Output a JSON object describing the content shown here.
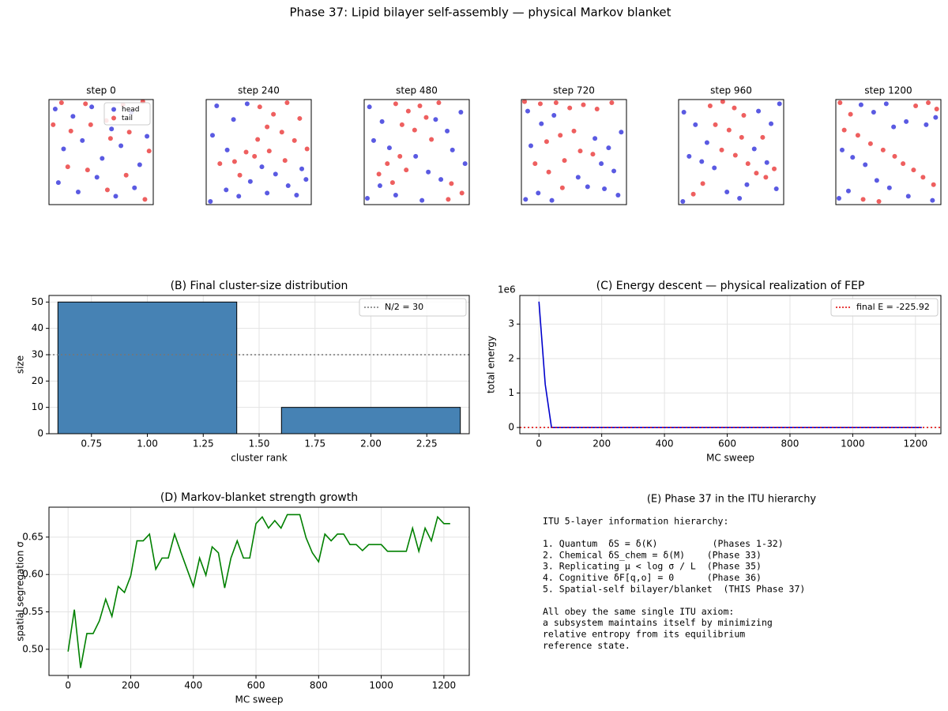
{
  "title": "Phase 37: Lipid bilayer self-assembly — physical Markov blanket",
  "chart_data": [
    {
      "type": "particles",
      "title": "step 0",
      "xlim": [
        0,
        10
      ],
      "ylim": [
        0,
        10
      ],
      "legend": "upper right",
      "series": [
        {
          "name": "head",
          "color": "#2323d8",
          "x": [
            0.6,
            2.3,
            4.1,
            6.0,
            7.9,
            9.4,
            1.4,
            3.2,
            5.1,
            6.9,
            8.7,
            0.9,
            2.8,
            4.6,
            6.4,
            8.2
          ],
          "values": [
            9.1,
            8.4,
            9.3,
            7.2,
            8.8,
            6.5,
            5.3,
            6.1,
            4.4,
            5.6,
            3.8,
            2.1,
            1.2,
            2.6,
            0.8,
            1.6
          ]
        },
        {
          "name": "tail",
          "color": "#e82a2a",
          "x": [
            1.2,
            3.5,
            5.5,
            7.1,
            9.0,
            0.4,
            2.1,
            4.0,
            5.9,
            7.7,
            9.6,
            1.8,
            3.7,
            5.6,
            7.4,
            9.2
          ],
          "values": [
            9.7,
            9.6,
            8.0,
            9.5,
            9.8,
            7.6,
            7.0,
            7.6,
            6.3,
            6.9,
            5.1,
            3.6,
            3.3,
            1.4,
            2.8,
            0.5
          ]
        }
      ]
    },
    {
      "type": "particles",
      "title": "step 240",
      "xlim": [
        0,
        10
      ],
      "ylim": [
        0,
        10
      ],
      "series": [
        {
          "name": "head",
          "color": "#2323d8",
          "x": [
            1.0,
            2.6,
            3.9,
            0.6,
            2.0,
            5.3,
            6.6,
            7.8,
            9.1,
            4.2,
            5.8,
            0.4,
            1.9,
            3.1,
            8.6,
            9.5
          ],
          "values": [
            9.4,
            8.1,
            9.6,
            6.6,
            5.2,
            3.6,
            2.9,
            1.8,
            3.4,
            2.2,
            1.1,
            0.3,
            1.4,
            0.8,
            0.9,
            2.4
          ]
        },
        {
          "name": "tail",
          "color": "#e82a2a",
          "x": [
            5.1,
            6.4,
            7.7,
            8.9,
            5.8,
            7.2,
            8.4,
            9.6,
            1.3,
            2.7,
            3.8,
            4.6,
            6.0,
            7.5,
            3.2,
            4.9
          ],
          "values": [
            9.3,
            8.6,
            9.7,
            8.2,
            7.4,
            6.9,
            6.1,
            5.3,
            3.9,
            4.1,
            5.0,
            4.6,
            5.1,
            4.2,
            2.8,
            6.2
          ]
        }
      ]
    },
    {
      "type": "particles",
      "title": "step 480",
      "xlim": [
        0,
        10
      ],
      "ylim": [
        0,
        10
      ],
      "series": [
        {
          "name": "head",
          "color": "#2323d8",
          "x": [
            0.5,
            1.7,
            0.9,
            2.4,
            6.8,
            7.9,
            9.2,
            8.4,
            9.6,
            4.9,
            6.1,
            7.3,
            0.3,
            1.5,
            3.0,
            5.5
          ],
          "values": [
            9.3,
            7.9,
            6.1,
            5.4,
            8.1,
            7.0,
            8.8,
            5.2,
            3.9,
            4.6,
            3.1,
            2.4,
            0.6,
            1.8,
            0.9,
            0.4
          ]
        },
        {
          "name": "tail",
          "color": "#e82a2a",
          "x": [
            3.0,
            4.2,
            5.3,
            3.6,
            4.8,
            5.9,
            2.2,
            3.4,
            1.4,
            2.7,
            4.0,
            8.3,
            9.3,
            8.0,
            7.1,
            6.4
          ],
          "values": [
            9.6,
            8.9,
            9.4,
            7.6,
            7.1,
            8.3,
            3.9,
            4.6,
            2.9,
            2.1,
            3.3,
            2.0,
            1.1,
            0.5,
            9.7,
            6.2
          ]
        }
      ]
    },
    {
      "type": "particles",
      "title": "step 720",
      "xlim": [
        0,
        10
      ],
      "ylim": [
        0,
        10
      ],
      "series": [
        {
          "name": "head",
          "color": "#2323d8",
          "x": [
            0.6,
            1.9,
            3.1,
            7.0,
            8.3,
            9.5,
            7.6,
            8.8,
            5.4,
            6.3,
            7.9,
            0.4,
            1.6,
            2.9,
            9.2,
            0.9
          ],
          "values": [
            8.9,
            7.7,
            8.5,
            6.3,
            5.4,
            6.9,
            3.9,
            3.2,
            2.6,
            1.7,
            1.5,
            0.5,
            1.1,
            0.4,
            0.9,
            5.6
          ]
        },
        {
          "name": "tail",
          "color": "#e82a2a",
          "x": [
            0.3,
            1.8,
            3.3,
            4.6,
            5.9,
            7.2,
            8.6,
            2.4,
            3.7,
            5.0,
            1.3,
            2.6,
            4.1,
            5.6,
            6.8,
            3.9
          ],
          "values": [
            9.8,
            9.6,
            9.7,
            9.2,
            9.5,
            9.1,
            9.7,
            6.0,
            6.6,
            7.0,
            3.9,
            3.1,
            4.2,
            5.1,
            4.8,
            1.6
          ]
        }
      ]
    },
    {
      "type": "particles",
      "title": "step 960",
      "xlim": [
        0,
        10
      ],
      "ylim": [
        0,
        10
      ],
      "series": [
        {
          "name": "head",
          "color": "#2323d8",
          "x": [
            0.5,
            1.6,
            2.7,
            1.0,
            2.2,
            3.4,
            7.6,
            8.8,
            9.6,
            7.2,
            8.4,
            4.6,
            5.8,
            0.4,
            6.5,
            9.3
          ],
          "values": [
            8.8,
            7.6,
            5.9,
            4.6,
            4.1,
            3.5,
            8.9,
            7.7,
            9.6,
            5.3,
            4.0,
            1.2,
            0.6,
            0.3,
            1.9,
            1.5
          ]
        },
        {
          "name": "tail",
          "color": "#e82a2a",
          "x": [
            3.0,
            4.2,
            5.3,
            6.2,
            3.5,
            4.8,
            6.0,
            4.1,
            5.4,
            6.6,
            7.4,
            8.3,
            9.1,
            2.3,
            1.4,
            8.0
          ],
          "values": [
            9.4,
            9.8,
            9.2,
            8.5,
            7.6,
            7.1,
            6.4,
            5.2,
            4.7,
            3.9,
            3.0,
            2.6,
            3.4,
            2.0,
            1.0,
            6.4
          ]
        }
      ]
    },
    {
      "type": "particles",
      "title": "step 1200",
      "xlim": [
        0,
        10
      ],
      "ylim": [
        0,
        10
      ],
      "series": [
        {
          "name": "head",
          "color": "#2323d8",
          "x": [
            2.4,
            3.6,
            4.8,
            5.5,
            6.7,
            0.6,
            1.6,
            2.8,
            8.6,
            9.5,
            3.9,
            5.1,
            0.3,
            1.2,
            6.9,
            9.2
          ],
          "values": [
            9.5,
            8.8,
            9.6,
            7.4,
            7.9,
            5.2,
            4.5,
            3.8,
            7.6,
            8.3,
            2.3,
            1.6,
            0.6,
            1.3,
            0.8,
            0.4
          ]
        },
        {
          "name": "tail",
          "color": "#e82a2a",
          "x": [
            0.4,
            1.4,
            0.8,
            2.1,
            7.6,
            8.8,
            9.6,
            3.3,
            4.5,
            5.6,
            6.4,
            7.4,
            8.3,
            9.3,
            2.6,
            4.1
          ],
          "values": [
            9.7,
            8.6,
            7.1,
            6.6,
            9.4,
            9.7,
            9.1,
            5.8,
            5.2,
            4.6,
            3.9,
            3.3,
            2.6,
            1.9,
            0.5,
            0.3
          ]
        }
      ]
    },
    {
      "type": "bar",
      "title": "(B) Final cluster-size distribution",
      "xlabel": "cluster rank",
      "ylabel": "size",
      "x": [
        1,
        2
      ],
      "values": [
        50,
        10
      ],
      "color": "#4682b4",
      "edgecolor": "#000000",
      "xlim": [
        0.56,
        2.44
      ],
      "ylim": [
        0,
        52.5
      ],
      "xticks": [
        {
          "value": 0.75,
          "label": "0.75"
        },
        {
          "value": 1,
          "label": "1.00"
        },
        {
          "value": 1.25,
          "label": "1.25"
        },
        {
          "value": 1.5,
          "label": "1.50"
        },
        {
          "value": 1.75,
          "label": "1.75"
        },
        {
          "value": 2,
          "label": "2.00"
        },
        {
          "value": 2.25,
          "label": "2.25"
        }
      ],
      "yticks": [
        0,
        10,
        20,
        30,
        40,
        50
      ],
      "grid": true,
      "legend": "upper right",
      "reference_lines": [
        {
          "name": "N/2 = 30",
          "value": 30,
          "color": "#777777"
        }
      ]
    },
    {
      "type": "line",
      "title": "(C) Energy descent — physical realization of FEP",
      "xlabel": "MC sweep",
      "ylabel": "total energy",
      "y_offset_label": "1e6",
      "series": [
        {
          "color": "#0000cc",
          "x": [
            0,
            20,
            40,
            1220
          ],
          "values": [
            3.65,
            1.25,
            -0.0002,
            -0.00022592
          ]
        }
      ],
      "xlim": [
        -61,
        1281
      ],
      "ylim": [
        -0.18,
        3.83
      ],
      "xticks": [
        0,
        200,
        400,
        600,
        800,
        1000,
        1200
      ],
      "yticks": [
        0,
        1,
        2,
        3
      ],
      "grid": true,
      "legend": "upper right",
      "reference_lines": [
        {
          "name": "final E = -225.92",
          "value": -0.00022592,
          "color": "#e00000"
        }
      ]
    },
    {
      "type": "line",
      "title": "(D) Markov-blanket strength growth",
      "xlabel": "MC sweep",
      "ylabel": "spatial segregation σ",
      "series": [
        {
          "color": "#008000",
          "x": [
            0,
            20,
            40,
            60,
            80,
            100,
            120,
            140,
            160,
            180,
            200,
            220,
            240,
            260,
            280,
            300,
            320,
            340,
            360,
            380,
            400,
            420,
            440,
            460,
            480,
            500,
            520,
            540,
            560,
            580,
            600,
            620,
            640,
            660,
            680,
            700,
            720,
            740,
            760,
            780,
            800,
            820,
            840,
            860,
            880,
            900,
            920,
            940,
            960,
            980,
            1000,
            1020,
            1040,
            1060,
            1080,
            1100,
            1120,
            1140,
            1160,
            1180,
            1200,
            1220
          ],
          "values": [
            0.497,
            0.553,
            0.475,
            0.521,
            0.521,
            0.538,
            0.567,
            0.544,
            0.584,
            0.576,
            0.598,
            0.645,
            0.645,
            0.654,
            0.607,
            0.622,
            0.622,
            0.654,
            0.63,
            0.607,
            0.584,
            0.622,
            0.599,
            0.637,
            0.629,
            0.582,
            0.622,
            0.645,
            0.622,
            0.622,
            0.668,
            0.677,
            0.662,
            0.672,
            0.662,
            0.68,
            0.68,
            0.68,
            0.649,
            0.629,
            0.617,
            0.654,
            0.645,
            0.654,
            0.654,
            0.64,
            0.64,
            0.632,
            0.64,
            0.64,
            0.64,
            0.631,
            0.631,
            0.631,
            0.631,
            0.662,
            0.631,
            0.662,
            0.645,
            0.677,
            0.668,
            0.668
          ]
        }
      ],
      "xlim": [
        -61,
        1281
      ],
      "ylim": [
        0.465,
        0.69
      ],
      "xticks": [
        0,
        200,
        400,
        600,
        800,
        1000,
        1200
      ],
      "yticks": [
        {
          "value": 0.5,
          "label": "0.50"
        },
        {
          "value": 0.55,
          "label": "0.55"
        },
        {
          "value": 0.6,
          "label": "0.60"
        },
        {
          "value": 0.65,
          "label": "0.65"
        }
      ],
      "grid": true
    }
  ],
  "text_panel": {
    "title": "(E) Phase 37 in the ITU hierarchy",
    "paragraphs": [
      [
        "ITU 5-layer information hierarchy:"
      ],
      [
        "1. Quantum  δS = δ(K)          (Phases 1-32)",
        "2. Chemical δS_chem = δ(M)    (Phase 33)",
        "3. Replicating μ < log σ / L  (Phase 35)",
        "4. Cognitive δF[q,o] = 0      (Phase 36)",
        "5. Spatial-self bilayer/blanket  (THIS Phase 37)"
      ],
      [
        "All obey the same single ITU axiom:",
        "a subsystem maintains itself by minimizing",
        "relative entropy from its equilibrium",
        "reference state."
      ]
    ]
  }
}
